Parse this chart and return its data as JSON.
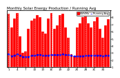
{
  "title": "Monthly Solar Energy Production / Running Avg",
  "bar_values": [
    580,
    430,
    530,
    590,
    340,
    160,
    170,
    420,
    510,
    530,
    565,
    545,
    390,
    365,
    530,
    590,
    420,
    455,
    565,
    580,
    430,
    320,
    140,
    120,
    430,
    475,
    545,
    565,
    475,
    430,
    500,
    545,
    420,
    320,
    455,
    520
  ],
  "running_avg": [
    145,
    120,
    130,
    140,
    130,
    115,
    110,
    115,
    125,
    130,
    135,
    138,
    130,
    125,
    130,
    135,
    132,
    133,
    138,
    140,
    138,
    132,
    125,
    118,
    118,
    120,
    123,
    126,
    126,
    126,
    128,
    130,
    128,
    124,
    126,
    128
  ],
  "bar_color": "#FF0000",
  "avg_color": "#0000FF",
  "bg_color": "#FFFFFF",
  "grid_color": "#FFFFFF",
  "plot_bg": "#CC0000",
  "ylabel_right": [
    "8",
    "7",
    "6",
    "5",
    "4",
    "3",
    "2",
    "1"
  ],
  "ylim": [
    0,
    620
  ],
  "n_bars": 36,
  "title_fontsize": 4.0,
  "tick_fontsize": 3.0
}
